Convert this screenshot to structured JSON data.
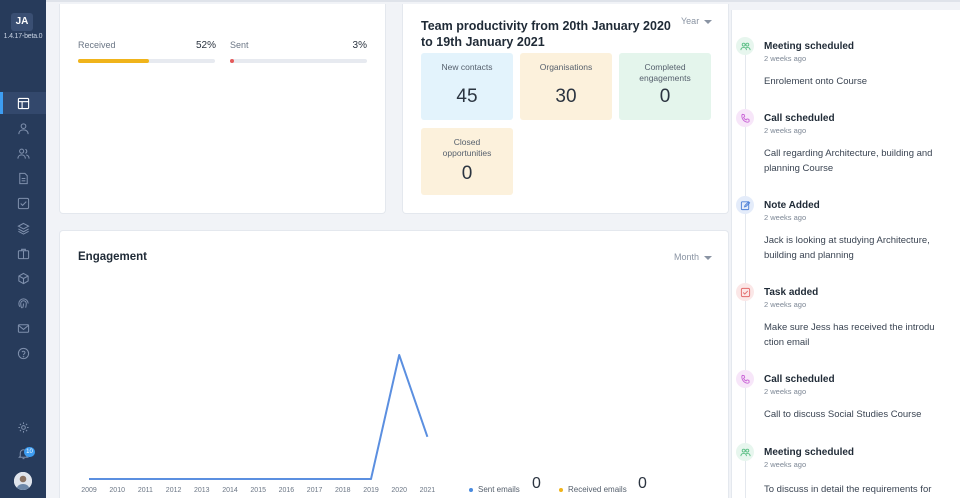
{
  "sidebar": {
    "initials": "JA",
    "version": "1.4.17-beta.0",
    "notification_count": "10",
    "items": [
      {
        "icon": "dashboard-icon",
        "active": true
      },
      {
        "icon": "person-icon"
      },
      {
        "icon": "people-icon"
      },
      {
        "icon": "document-icon"
      },
      {
        "icon": "checkbox-icon"
      },
      {
        "icon": "layers-icon"
      },
      {
        "icon": "briefcase-icon"
      },
      {
        "icon": "cube-icon"
      },
      {
        "icon": "fingerprint-icon"
      },
      {
        "icon": "mail-icon"
      },
      {
        "icon": "help-icon"
      }
    ],
    "settings_icon": "gear-icon",
    "notification_icon": "bell-icon"
  },
  "ratio_card": {
    "received": {
      "label": "Received",
      "percent": "52%",
      "fraction": 0.52,
      "color": "#f0b41b"
    },
    "sent": {
      "label": "Sent",
      "percent": "3%",
      "fraction": 0.03,
      "color": "#e55a5a"
    }
  },
  "productivity": {
    "title": "Team productivity from 20th January 2020 to 19th January 2021",
    "period": "Year",
    "stats": [
      {
        "label": "New contacts",
        "value": "45",
        "color": "#e3f3fc"
      },
      {
        "label": "Organisations",
        "value": "30",
        "color": "#fcf1dc"
      },
      {
        "label": "Completed engagements",
        "value": "0",
        "color": "#e4f5ec"
      },
      {
        "label": "Closed opportunities",
        "value": "0",
        "color": "#fcf1dc"
      }
    ]
  },
  "engagement": {
    "title": "Engagement",
    "period": "Month",
    "legend": {
      "sent_label": "Sent emails",
      "sent_value": "0",
      "received_label": "Received emails",
      "received_value": "0",
      "sent_color": "#4a8bdf",
      "received_color": "#f0b41b"
    }
  },
  "chart_data": {
    "type": "line",
    "x": [
      "2009",
      "2010",
      "2011",
      "2012",
      "2013",
      "2014",
      "2015",
      "2016",
      "2017",
      "2018",
      "2019",
      "2020",
      "2021"
    ],
    "series": [
      {
        "values": [
          0,
          0,
          0,
          0,
          0,
          0,
          0,
          0,
          0,
          0,
          0,
          100,
          34
        ],
        "color": "#5b8fe0"
      }
    ],
    "ylim": [
      0,
      100
    ],
    "grid": false
  },
  "feed": [
    {
      "icon": "meeting-icon",
      "icon_color": "#5bbf85",
      "bg": "#e7f6ee",
      "title": "Meeting scheduled",
      "time": "2 weeks ago",
      "desc": "Enrolement onto Course"
    },
    {
      "icon": "phone-icon",
      "icon_color": "#c963d6",
      "bg": "#f7e6f9",
      "title": "Call scheduled",
      "time": "2 weeks ago",
      "desc": "Call regarding Architecture, building and planning Course"
    },
    {
      "icon": "note-icon",
      "icon_color": "#4c7fd6",
      "bg": "#e4ecfa",
      "title": "Note Added",
      "time": "2 weeks ago",
      "desc": "Jack is looking at studying Architecture, building and planning"
    },
    {
      "icon": "task-icon",
      "icon_color": "#e36a6a",
      "bg": "#fbe7e7",
      "title": "Task added",
      "time": "2 weeks ago",
      "desc": "Make sure Jess has received the introdu ction email"
    },
    {
      "icon": "phone-icon",
      "icon_color": "#c963d6",
      "bg": "#f7e6f9",
      "title": "Call scheduled",
      "time": "2 weeks ago",
      "desc": "Call to discuss Social Studies Course"
    },
    {
      "icon": "meeting-icon",
      "icon_color": "#5bbf85",
      "bg": "#e7f6ee",
      "title": "Meeting scheduled",
      "time": "2 weeks ago",
      "desc": "To discuss in detail the requirements for"
    }
  ]
}
